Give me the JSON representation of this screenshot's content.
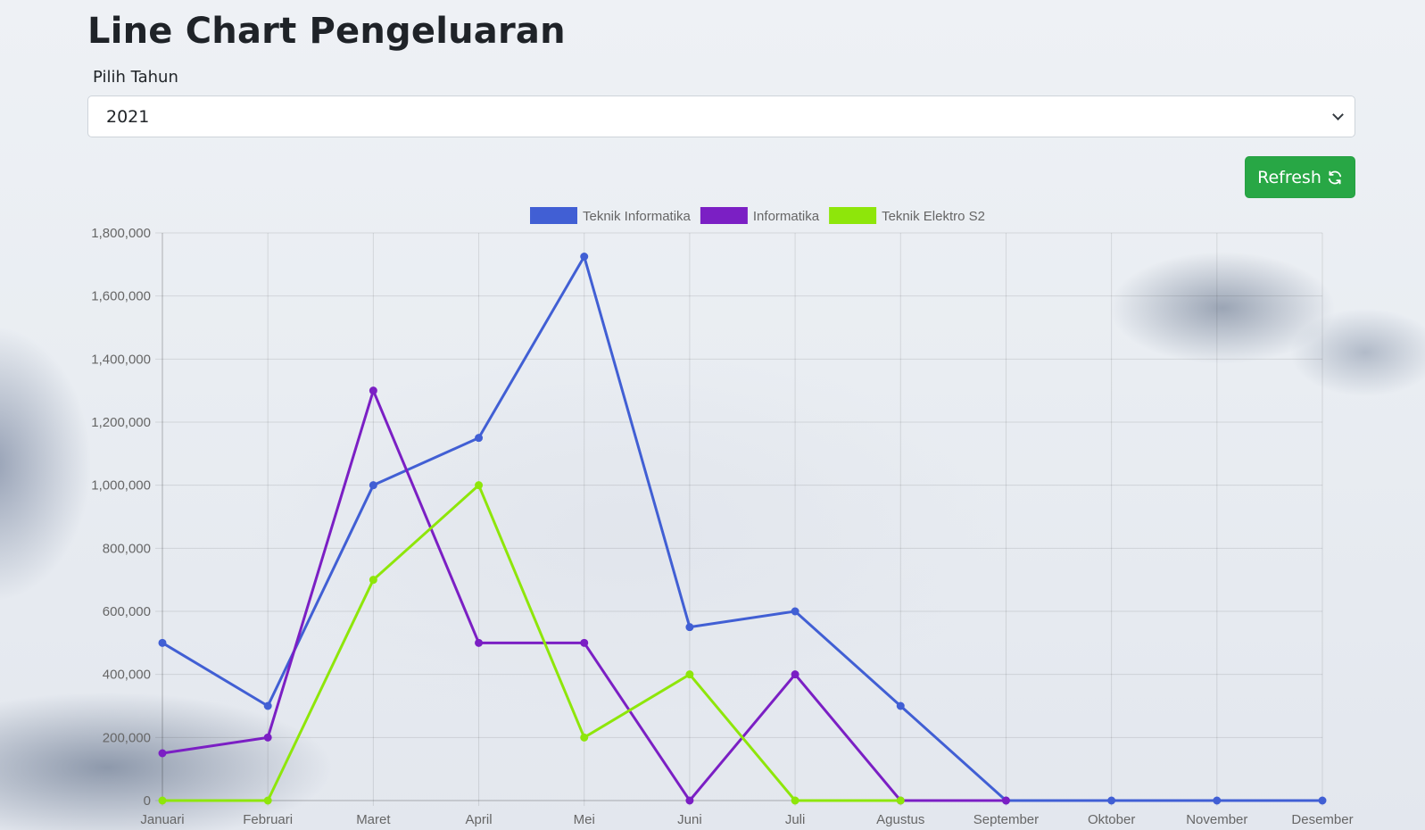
{
  "page": {
    "title": "Line Chart Pengeluaran",
    "year_label": "Pilih Tahun",
    "year_selected": "2021",
    "refresh_label": "Refresh"
  },
  "colors": {
    "refresh_button": "#28a745",
    "series": [
      "#415fd4",
      "#7b1fc4",
      "#8ee60a"
    ]
  },
  "icons": {
    "refresh": "refresh-icon",
    "select": "chevron-down-icon"
  },
  "chart_data": {
    "type": "line",
    "title": "",
    "xlabel": "",
    "ylabel": "",
    "categories": [
      "Januari",
      "Februari",
      "Maret",
      "April",
      "Mei",
      "Juni",
      "Juli",
      "Agustus",
      "September",
      "Oktober",
      "November",
      "Desember"
    ],
    "series": [
      {
        "name": "Teknik Informatika",
        "color": "#415fd4",
        "values": [
          500000,
          300000,
          1000000,
          1150000,
          1725000,
          550000,
          600000,
          300000,
          0,
          0,
          0,
          0
        ]
      },
      {
        "name": "Informatika",
        "color": "#7b1fc4",
        "values": [
          150000,
          200000,
          1300000,
          500000,
          500000,
          0,
          400000,
          0,
          0,
          null,
          null,
          null
        ]
      },
      {
        "name": "Teknik Elektro S2",
        "color": "#8ee60a",
        "values": [
          0,
          0,
          700000,
          1000000,
          200000,
          400000,
          0,
          0,
          null,
          null,
          null,
          null
        ]
      }
    ],
    "ylim": [
      0,
      1800000
    ],
    "y_ticks": [
      "0",
      "200,000",
      "400,000",
      "600,000",
      "800,000",
      "1,000,000",
      "1,200,000",
      "1,400,000",
      "1,600,000",
      "1,800,000"
    ],
    "grid": true,
    "legend_position": "top"
  }
}
